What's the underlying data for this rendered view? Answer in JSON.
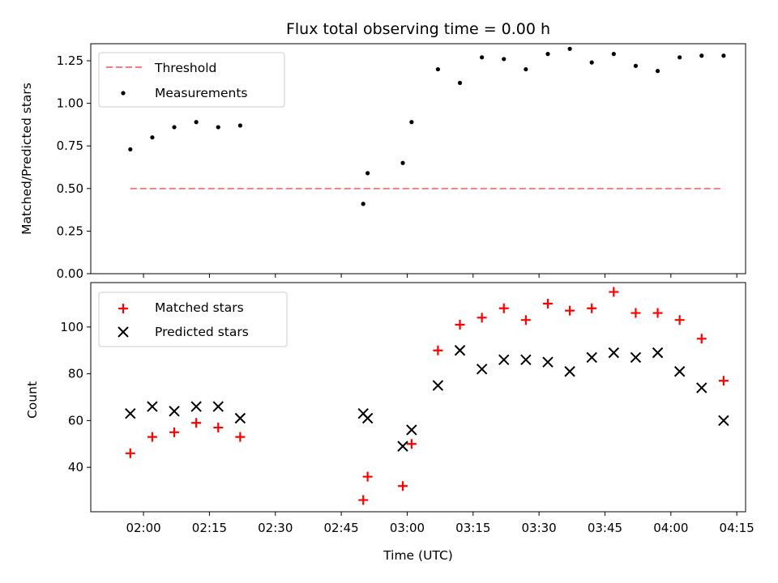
{
  "chart_data": [
    {
      "type": "scatter",
      "title": "Flux total observing time = 0.00 h",
      "xlabel": "",
      "ylabel": "Matched/Predicted stars",
      "xlim": [
        "01:48",
        "04:17"
      ],
      "ylim": [
        0,
        1.35
      ],
      "yticks": [
        0.0,
        0.25,
        0.5,
        0.75,
        1.0,
        1.25
      ],
      "ytick_labels": [
        "0.00",
        "0.25",
        "0.50",
        "0.75",
        "1.00",
        "1.25"
      ],
      "legend": {
        "position": "top-left",
        "entries": [
          "Threshold",
          "Measurements"
        ]
      },
      "series": [
        {
          "name": "Threshold",
          "kind": "line",
          "style": "dashed",
          "color": "#f08080",
          "x": [
            "01:57",
            "04:12"
          ],
          "y": [
            0.5,
            0.5
          ]
        },
        {
          "name": "Measurements",
          "kind": "scatter",
          "marker": "dot",
          "color": "#000000",
          "x": [
            "01:57",
            "02:02",
            "02:07",
            "02:12",
            "02:17",
            "02:22",
            "02:50",
            "02:51",
            "02:59",
            "03:01",
            "03:07",
            "03:12",
            "03:17",
            "03:22",
            "03:27",
            "03:32",
            "03:37",
            "03:42",
            "03:47",
            "03:52",
            "03:57",
            "04:02",
            "04:07",
            "04:12"
          ],
          "y": [
            0.73,
            0.8,
            0.86,
            0.89,
            0.86,
            0.87,
            0.41,
            0.59,
            0.65,
            0.89,
            1.2,
            1.12,
            1.27,
            1.26,
            1.2,
            1.29,
            1.32,
            1.24,
            1.29,
            1.22,
            1.19,
            1.27,
            1.28,
            1.28
          ]
        }
      ]
    },
    {
      "type": "scatter",
      "title": "",
      "xlabel": "Time (UTC)",
      "ylabel": "Count",
      "xlim": [
        "01:48",
        "04:17"
      ],
      "ylim": [
        21,
        119
      ],
      "yticks": [
        40,
        60,
        80,
        100
      ],
      "ytick_labels": [
        "40",
        "60",
        "80",
        "100"
      ],
      "xticks": [
        "02:00",
        "02:15",
        "02:30",
        "02:45",
        "03:00",
        "03:15",
        "03:30",
        "03:45",
        "04:00",
        "04:15"
      ],
      "legend": {
        "position": "top-left",
        "entries": [
          "Matched stars",
          "Predicted stars"
        ]
      },
      "series": [
        {
          "name": "Matched stars",
          "marker": "plus",
          "color": "#ff0000",
          "x": [
            "01:57",
            "02:02",
            "02:07",
            "02:12",
            "02:17",
            "02:22",
            "02:50",
            "02:51",
            "02:59",
            "03:01",
            "03:07",
            "03:12",
            "03:17",
            "03:22",
            "03:27",
            "03:32",
            "03:37",
            "03:42",
            "03:47",
            "03:52",
            "03:57",
            "04:02",
            "04:07",
            "04:12"
          ],
          "y": [
            46,
            53,
            55,
            59,
            57,
            53,
            26,
            36,
            32,
            50,
            90,
            101,
            104,
            108,
            103,
            110,
            107,
            108,
            115,
            106,
            106,
            103,
            95,
            77
          ]
        },
        {
          "name": "Predicted stars",
          "marker": "x",
          "color": "#000000",
          "x": [
            "01:57",
            "02:02",
            "02:07",
            "02:12",
            "02:17",
            "02:22",
            "02:50",
            "02:51",
            "02:59",
            "03:01",
            "03:07",
            "03:12",
            "03:17",
            "03:22",
            "03:27",
            "03:32",
            "03:37",
            "03:42",
            "03:47",
            "03:52",
            "03:57",
            "04:02",
            "04:07",
            "04:12"
          ],
          "y": [
            63,
            66,
            64,
            66,
            66,
            61,
            63,
            61,
            49,
            56,
            75,
            90,
            82,
            86,
            86,
            85,
            81,
            87,
            89,
            87,
            89,
            81,
            74,
            60
          ]
        }
      ]
    }
  ]
}
